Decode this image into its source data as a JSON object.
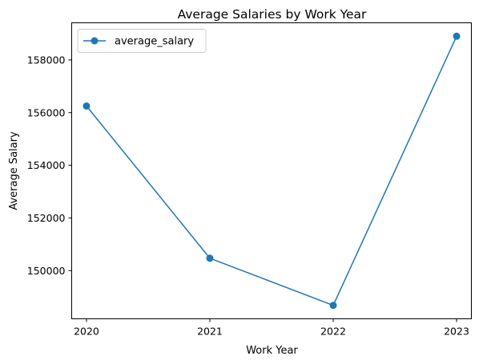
{
  "chart_data": {
    "type": "line",
    "title": "Average Salaries by Work Year",
    "xlabel": "Work Year",
    "ylabel": "Average Salary",
    "x": [
      2020,
      2021,
      2022,
      2023
    ],
    "series": [
      {
        "name": "average_salary",
        "values": [
          156250,
          150470,
          148680,
          158900
        ],
        "color": "#1f77b4",
        "marker": "circle"
      }
    ],
    "xticks": [
      "2020",
      "2021",
      "2022",
      "2023"
    ],
    "yticks": [
      150000,
      152000,
      154000,
      156000,
      158000
    ],
    "ytick_labels": [
      "150000",
      "152000",
      "154000",
      "156000",
      "158000"
    ],
    "xlim": [
      2019.88,
      2023.12
    ],
    "ylim": [
      148170,
      159410
    ],
    "grid": false,
    "legend_position": "upper left"
  }
}
